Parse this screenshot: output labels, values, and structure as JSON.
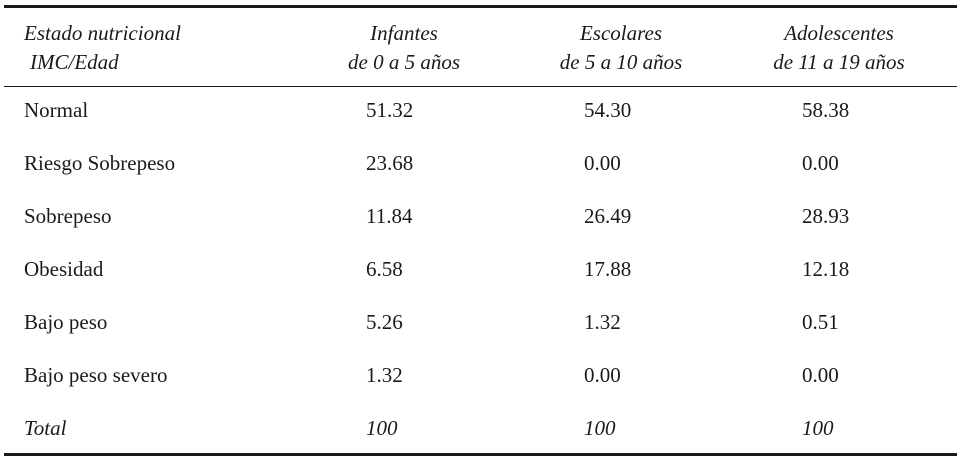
{
  "table": {
    "headers": [
      [
        "Estado nutricional",
        "IMC/Edad"
      ],
      [
        "Infantes",
        "de 0 a 5 años"
      ],
      [
        "Escolares",
        "de 5 a 10 años"
      ],
      [
        "Adolescentes",
        "de 11 a 19 años"
      ]
    ],
    "rows": [
      [
        "Normal",
        "51.32",
        "54.30",
        "58.38"
      ],
      [
        "Riesgo Sobrepeso",
        "23.68",
        "0.00",
        "0.00"
      ],
      [
        "Sobrepeso",
        "11.84",
        "26.49",
        "28.93"
      ],
      [
        "Obesidad",
        "6.58",
        "17.88",
        "12.18"
      ],
      [
        "Bajo peso",
        "5.26",
        "1.32",
        "0.51"
      ],
      [
        "Bajo peso severo",
        "1.32",
        "0.00",
        "0.00"
      ],
      [
        "Total",
        "100",
        "100",
        "100"
      ]
    ]
  }
}
